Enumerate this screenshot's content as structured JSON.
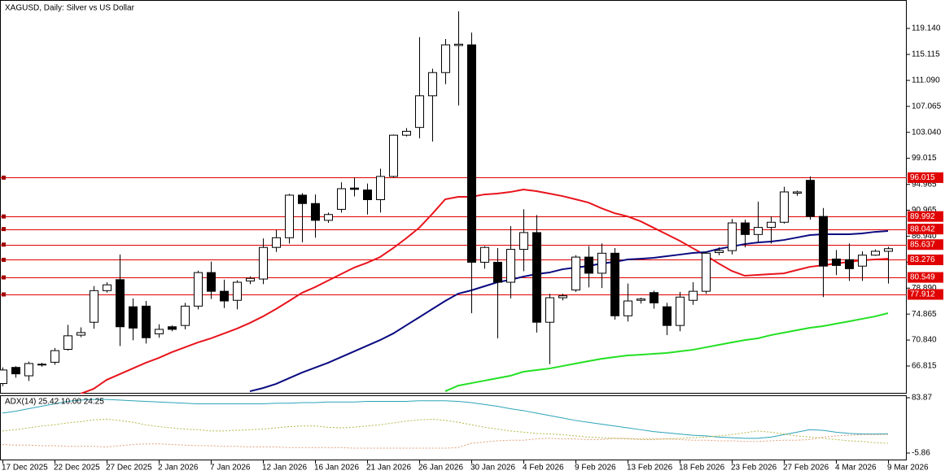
{
  "chart_data": [
    {
      "type": "candlestick",
      "title": "XAGUSD, Daily:  Silver vs US Dollar",
      "categories": [
        "17 Dec 2025",
        null,
        null,
        null,
        "22 Dec 2025",
        null,
        null,
        null,
        "27 Dec 2025",
        null,
        null,
        null,
        "2 Jan 2026",
        null,
        null,
        null,
        "7 Jan 2026",
        null,
        null,
        null,
        "12 Jan 2026",
        null,
        null,
        null,
        "16 Jan 2026",
        null,
        null,
        null,
        "21 Jan 2026",
        null,
        null,
        null,
        "26 Jan 2026",
        null,
        null,
        null,
        "30 Jan 2026",
        null,
        null,
        null,
        "4 Feb 2026",
        null,
        null,
        null,
        "9 Feb 2026",
        null,
        null,
        null,
        "13 Feb 2026",
        null,
        null,
        null,
        "18 Feb 2026",
        null,
        null,
        null,
        "23 Feb 2026",
        null,
        null,
        null,
        "27 Feb 2026",
        null,
        null,
        null,
        "4 Mar 2026",
        null,
        null,
        null,
        "9 Mar 2026"
      ],
      "open": [
        64.1,
        66.6,
        65.3,
        67.0,
        67.4,
        69.4,
        71.6,
        73.6,
        78.5,
        80.2,
        76.0,
        76.1,
        71.8,
        72.9,
        73.1,
        76.1,
        81.3,
        78.4,
        77.0,
        80.0,
        80.3,
        85.2,
        86.7,
        93.3,
        92.0,
        89.4,
        91.1,
        94.4,
        94.1,
        92.6,
        96.2,
        102.6,
        103.8,
        108.7,
        112.3,
        116.5,
        116.6,
        82.9,
        82.9,
        79.8,
        84.9,
        87.5,
        73.6,
        77.4,
        78.6,
        83.7,
        81.2,
        84.3,
        74.6,
        77.0,
        78.2,
        76.0,
        73.1,
        77.0,
        78.4,
        84.4,
        84.7,
        89.0,
        87.2,
        88.3,
        89.1,
        93.6,
        95.6,
        90.0,
        83.4,
        83.3,
        82.3,
        84.0,
        84.6
      ],
      "high": [
        66.6,
        66.8,
        67.5,
        67.3,
        69.6,
        73.2,
        72.8,
        79.2,
        79.8,
        84.1,
        77.3,
        76.9,
        73.3,
        73.1,
        76.6,
        81.6,
        83.0,
        80.2,
        80.1,
        80.7,
        86.6,
        87.9,
        93.5,
        93.6,
        93.4,
        90.6,
        95.3,
        96.0,
        95.1,
        97.4,
        102.7,
        103.7,
        117.8,
        112.9,
        117.5,
        121.8,
        118.5,
        85.4,
        85.1,
        88.5,
        91.1,
        90.2,
        78.0,
        78.0,
        84.0,
        85.4,
        85.8,
        85.1,
        79.6,
        77.4,
        78.5,
        76.6,
        78.3,
        79.8,
        84.6,
        85.2,
        89.6,
        89.5,
        92.3,
        90.0,
        94.6,
        94.0,
        96.2,
        91.3,
        84.8,
        85.8,
        84.6,
        84.9,
        85.3
      ],
      "low": [
        63.7,
        65.0,
        64.5,
        66.7,
        67.0,
        69.2,
        71.3,
        72.6,
        78.2,
        69.9,
        70.8,
        70.3,
        71.2,
        72.2,
        72.5,
        75.6,
        77.2,
        75.8,
        75.6,
        79.5,
        79.5,
        84.5,
        85.8,
        86.0,
        86.7,
        89.0,
        90.6,
        93.1,
        90.3,
        90.6,
        96.0,
        102.4,
        102.1,
        101.6,
        110.5,
        107.2,
        75.0,
        81.9,
        71.1,
        77.3,
        81.5,
        72.0,
        67.1,
        77.0,
        78.3,
        79.0,
        78.9,
        74.0,
        73.7,
        76.5,
        75.7,
        71.6,
        72.2,
        76.3,
        78.0,
        84.0,
        84.1,
        85.2,
        86.0,
        85.8,
        88.9,
        93.2,
        89.5,
        77.5,
        80.9,
        80.0,
        80.0,
        83.9,
        79.6
      ],
      "close": [
        66.2,
        65.6,
        67.2,
        67.1,
        69.2,
        71.5,
        72.0,
        78.5,
        79.4,
        72.9,
        72.7,
        71.2,
        72.5,
        72.5,
        76.1,
        81.3,
        78.4,
        76.9,
        79.8,
        80.4,
        85.2,
        86.7,
        93.3,
        92.0,
        89.4,
        90.3,
        94.3,
        94.2,
        92.6,
        96.2,
        102.6,
        103.2,
        108.7,
        112.3,
        116.6,
        116.7,
        82.9,
        85.2,
        79.8,
        84.9,
        87.5,
        73.6,
        77.4,
        77.7,
        83.7,
        81.2,
        84.3,
        74.6,
        76.9,
        77.2,
        76.6,
        73.1,
        77.5,
        78.4,
        84.3,
        84.7,
        89.0,
        87.2,
        88.3,
        89.1,
        93.8,
        93.8,
        90.0,
        82.3,
        82.4,
        81.9,
        84.0,
        84.6,
        85.0
      ],
      "up_color": "#ffffff",
      "down_color": "#000000",
      "overlays": [
        {
          "color": "#e8141c",
          "values": [
            null,
            null,
            null,
            null,
            null,
            null,
            62.52,
            63.28,
            64.67,
            65.55,
            66.43,
            67.31,
            68.07,
            68.95,
            69.71,
            70.47,
            71.1,
            71.85,
            72.61,
            73.49,
            74.5,
            75.64,
            76.89,
            78.16,
            79.04,
            80.05,
            81.06,
            82.07,
            82.82,
            83.71,
            85.09,
            86.61,
            88.24,
            90.39,
            92.66,
            93.04,
            93.04,
            93.41,
            93.54,
            93.79,
            94.17,
            93.92,
            93.54,
            93.16,
            92.66,
            92.15,
            91.27,
            90.51,
            90.01,
            89.25,
            88.24,
            87.24,
            86.23,
            85.09,
            83.96,
            82.7,
            81.56,
            80.81,
            80.93,
            81.06,
            81.18,
            81.69,
            82.19,
            82.44,
            82.7,
            82.95,
            83.2,
            83.33,
            83.45
          ]
        },
        {
          "color": "#0a0a80",
          "values": [
            null,
            null,
            null,
            null,
            null,
            null,
            null,
            null,
            null,
            null,
            null,
            null,
            null,
            null,
            null,
            null,
            null,
            null,
            null,
            62.9,
            63.4,
            64.04,
            64.92,
            65.8,
            66.56,
            67.31,
            68.2,
            69.08,
            69.96,
            70.84,
            71.85,
            73.11,
            74.37,
            75.64,
            76.9,
            78.03,
            78.54,
            79.17,
            79.8,
            80.17,
            80.68,
            81.06,
            81.31,
            81.81,
            82.07,
            82.32,
            82.7,
            82.95,
            83.33,
            83.45,
            83.58,
            83.83,
            84.08,
            84.34,
            84.46,
            84.97,
            85.34,
            85.72,
            85.97,
            86.1,
            86.35,
            86.73,
            87.11,
            87.24,
            87.24,
            87.24,
            87.36,
            87.61,
            87.74
          ]
        },
        {
          "color": "#22e022",
          "values": [
            null,
            null,
            null,
            null,
            null,
            null,
            null,
            null,
            null,
            null,
            null,
            null,
            null,
            null,
            null,
            null,
            null,
            null,
            null,
            null,
            null,
            null,
            null,
            null,
            null,
            null,
            null,
            null,
            null,
            null,
            null,
            null,
            null,
            null,
            62.9,
            63.78,
            64.16,
            64.54,
            64.92,
            65.3,
            65.93,
            66.18,
            66.43,
            66.81,
            67.19,
            67.57,
            67.94,
            68.2,
            68.45,
            68.57,
            68.7,
            68.83,
            69.08,
            69.33,
            69.71,
            70.09,
            70.47,
            70.84,
            71.1,
            71.6,
            71.98,
            72.36,
            72.74,
            72.99,
            73.37,
            73.74,
            74.12,
            74.5,
            75.01
          ]
        }
      ],
      "levels": [
        96.015,
        89.992,
        88.042,
        85.637,
        83.276,
        80.549,
        77.912
      ],
      "level_color": "#e00000",
      "ylim": [
        62.53,
        123.55
      ],
      "yticks": [
        {
          "value": 119.14,
          "label": "119.140"
        },
        115.115,
        {
          "value": 111.09,
          "label": "111.090"
        },
        107.065,
        {
          "value": 103.04,
          "label": "103.040"
        },
        99.015,
        94.965,
        90.965,
        {
          "value": 86.94,
          "label": "86.940"
        },
        82.915,
        {
          "value": 78.89,
          "label": "78.890"
        },
        74.865,
        {
          "value": 70.84,
          "label": "70.840"
        },
        66.815
      ]
    },
    {
      "type": "line",
      "title": "ADX(14) 25.42 10.00 24.25",
      "series": [
        {
          "color": "#2ba3b8",
          "dash": false,
          "values": [
            59,
            62,
            66,
            70,
            74,
            78,
            80,
            81,
            81,
            80,
            79,
            78,
            77,
            76,
            75,
            74,
            74,
            74,
            74,
            74,
            74,
            75,
            75,
            76,
            76,
            77,
            77,
            77,
            78,
            78,
            78,
            78,
            79,
            79,
            79,
            78,
            76,
            73,
            70,
            66,
            63,
            59,
            55,
            51,
            47,
            44,
            41,
            38,
            35,
            32,
            29,
            27,
            25,
            23,
            22,
            20,
            19,
            18,
            18,
            20,
            24,
            28,
            32,
            31,
            28,
            26,
            25,
            25,
            25.42
          ]
        },
        {
          "color": "#b5b84a",
          "dash": true,
          "values": [
            30,
            32,
            35,
            38,
            40,
            43,
            45,
            48,
            49,
            47,
            44,
            40,
            37,
            35,
            33,
            32,
            30,
            30,
            31,
            32,
            33,
            35,
            37,
            38,
            38,
            36,
            35,
            36,
            38,
            40,
            43,
            46,
            48,
            49,
            47,
            44,
            40,
            36,
            33,
            30,
            28,
            26,
            25,
            24,
            22,
            20,
            19,
            18,
            17,
            16,
            16,
            17,
            18,
            19,
            20,
            22,
            24,
            27,
            30,
            28,
            25,
            22,
            20,
            18,
            16,
            14,
            13,
            11,
            10
          ]
        },
        {
          "color": "#e0a07a",
          "dash": true,
          "values": [
            8,
            7,
            7,
            6,
            6,
            5,
            5,
            5,
            4,
            6,
            8,
            9,
            9,
            8,
            7,
            6,
            6,
            5,
            5,
            4,
            4,
            4,
            3,
            3,
            3,
            3,
            3,
            2,
            2,
            2,
            2,
            2,
            2,
            2,
            2,
            3,
            10,
            12,
            14,
            15,
            15,
            17,
            18,
            17,
            17,
            16,
            16,
            18,
            18,
            17,
            17,
            17,
            16,
            15,
            15,
            14,
            14,
            13,
            13,
            14,
            15,
            15,
            16,
            20,
            22,
            23,
            24,
            24,
            24.25
          ]
        }
      ],
      "ylim": [
        -17.74,
        87.83
      ],
      "yticks": [
        83.87,
        -5.86
      ]
    }
  ]
}
